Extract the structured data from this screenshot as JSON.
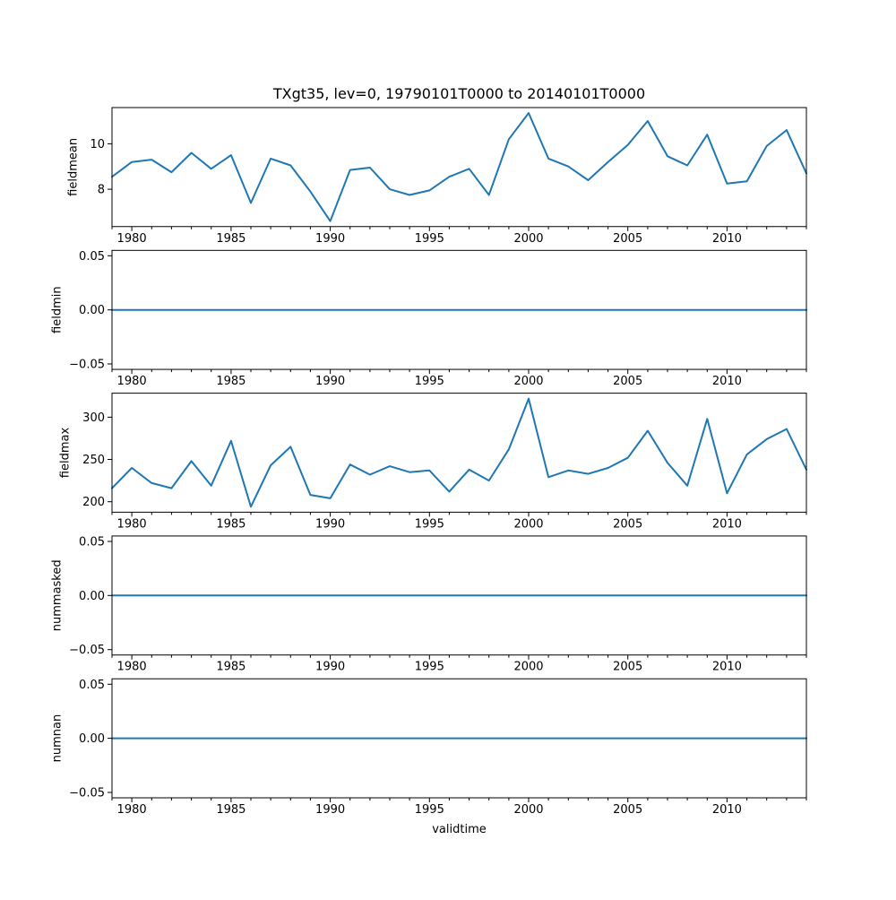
{
  "title": "TXgt35, lev=0, 19790101T0000 to 20140101T0000",
  "colors": {
    "line": "#1f77b4",
    "axis": "#000000",
    "background": "#ffffff"
  },
  "chart_data": {
    "type": "line",
    "title": "TXgt35, lev=0, 19790101T0000 to 20140101T0000",
    "xlabel": "validtime",
    "grid": false,
    "legend": null,
    "xlim": [
      1979,
      2014
    ],
    "x": [
      1979,
      1980,
      1981,
      1982,
      1983,
      1984,
      1985,
      1986,
      1987,
      1988,
      1989,
      1990,
      1991,
      1992,
      1993,
      1994,
      1995,
      1996,
      1997,
      1998,
      1999,
      2000,
      2001,
      2002,
      2003,
      2004,
      2005,
      2006,
      2007,
      2008,
      2009,
      2010,
      2011,
      2012,
      2013,
      2014
    ],
    "x_major_ticks": [
      1980,
      1985,
      1990,
      1995,
      2000,
      2005,
      2010
    ],
    "x_tick_labels": [
      "1980",
      "1985",
      "1990",
      "1995",
      "2000",
      "2005",
      "2010"
    ],
    "line_color": "#1f77b4",
    "subplots": [
      {
        "ylabel": "fieldmean",
        "ylim": [
          6.36,
          11.59
        ],
        "yticks": [
          8,
          10
        ],
        "ytick_labels": [
          "8",
          "10"
        ],
        "values": [
          8.55,
          9.2,
          9.3,
          8.75,
          9.6,
          8.9,
          9.5,
          7.4,
          9.35,
          9.05,
          7.9,
          6.6,
          8.85,
          8.95,
          8.0,
          7.75,
          7.95,
          8.55,
          8.9,
          7.75,
          10.2,
          11.35,
          9.35,
          9.0,
          8.4,
          9.2,
          9.95,
          11.0,
          9.45,
          9.05,
          10.4,
          8.25,
          8.35,
          9.9,
          10.6,
          8.7
        ]
      },
      {
        "ylabel": "fieldmin",
        "ylim": [
          -0.055,
          0.055
        ],
        "yticks": [
          -0.05,
          0.0,
          0.05
        ],
        "ytick_labels": [
          "−0.05",
          "0.00",
          "0.05"
        ],
        "values": [
          0,
          0,
          0,
          0,
          0,
          0,
          0,
          0,
          0,
          0,
          0,
          0,
          0,
          0,
          0,
          0,
          0,
          0,
          0,
          0,
          0,
          0,
          0,
          0,
          0,
          0,
          0,
          0,
          0,
          0,
          0,
          0,
          0,
          0,
          0,
          0
        ]
      },
      {
        "ylabel": "fieldmax",
        "ylim": [
          187.6,
          328.4
        ],
        "yticks": [
          200,
          250,
          300
        ],
        "ytick_labels": [
          "200",
          "250",
          "300"
        ],
        "values": [
          216,
          240,
          222,
          216,
          248,
          219,
          272,
          194,
          243,
          265,
          208,
          204,
          244,
          232,
          242,
          235,
          237,
          212,
          238,
          225,
          262,
          322,
          229,
          237,
          233,
          240,
          252,
          284,
          246,
          219,
          298,
          210,
          256,
          274,
          286,
          238
        ]
      },
      {
        "ylabel": "nummasked",
        "ylim": [
          -0.055,
          0.055
        ],
        "yticks": [
          -0.05,
          0.0,
          0.05
        ],
        "ytick_labels": [
          "−0.05",
          "0.00",
          "0.05"
        ],
        "values": [
          0,
          0,
          0,
          0,
          0,
          0,
          0,
          0,
          0,
          0,
          0,
          0,
          0,
          0,
          0,
          0,
          0,
          0,
          0,
          0,
          0,
          0,
          0,
          0,
          0,
          0,
          0,
          0,
          0,
          0,
          0,
          0,
          0,
          0,
          0,
          0
        ]
      },
      {
        "ylabel": "numnan",
        "ylim": [
          -0.055,
          0.055
        ],
        "yticks": [
          -0.05,
          0.0,
          0.05
        ],
        "ytick_labels": [
          "−0.05",
          "0.00",
          "0.05"
        ],
        "values": [
          0,
          0,
          0,
          0,
          0,
          0,
          0,
          0,
          0,
          0,
          0,
          0,
          0,
          0,
          0,
          0,
          0,
          0,
          0,
          0,
          0,
          0,
          0,
          0,
          0,
          0,
          0,
          0,
          0,
          0,
          0,
          0,
          0,
          0,
          0,
          0
        ]
      }
    ]
  }
}
